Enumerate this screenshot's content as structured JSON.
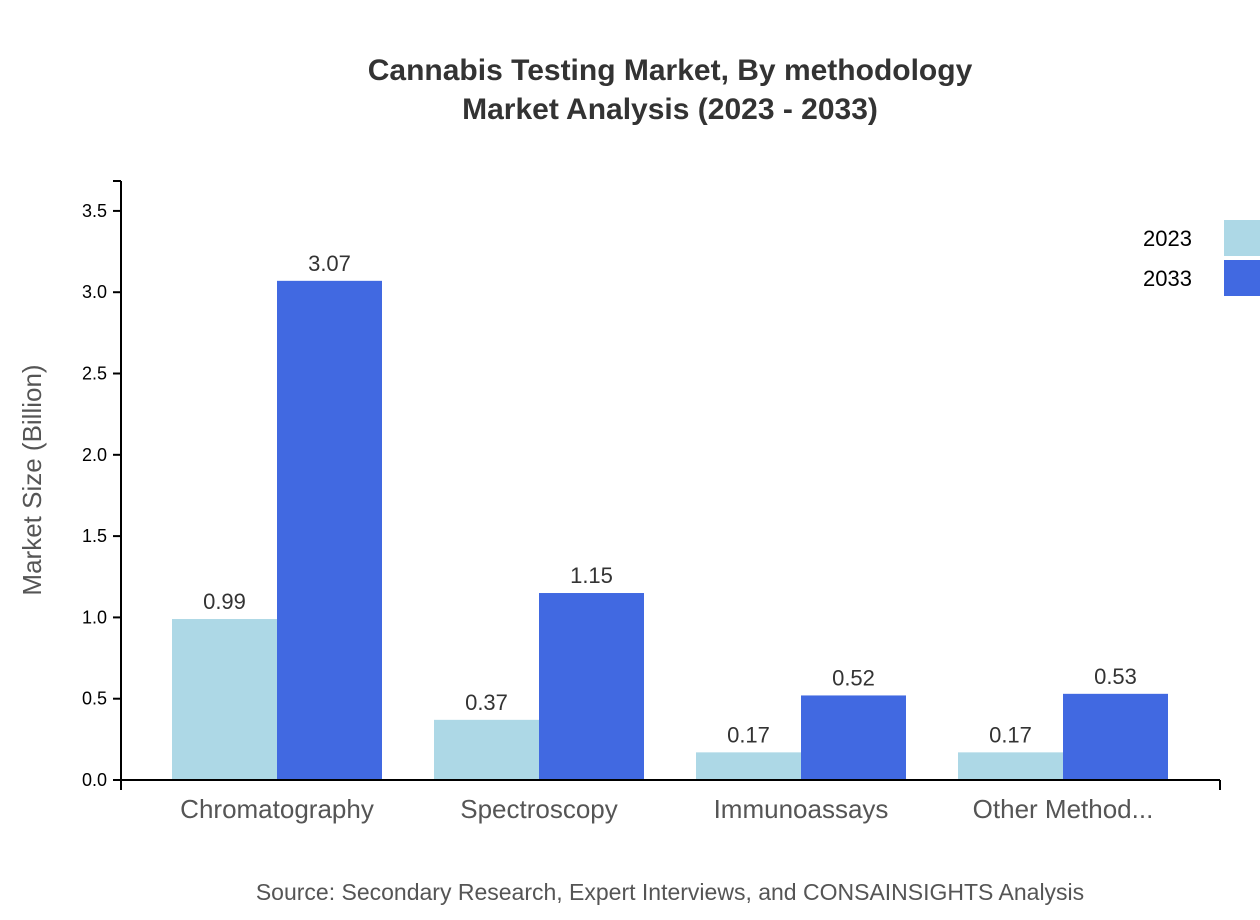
{
  "chart_data": {
    "type": "bar",
    "title": [
      "Cannabis Testing Market, By methodology",
      "Market Analysis (2023 - 2033)"
    ],
    "xlabel": "",
    "ylabel": "Market Size (Billion)",
    "ylim": [
      0,
      3.684
    ],
    "yticks": [
      "0.0",
      "0.5",
      "1.0",
      "1.5",
      "2.0",
      "2.5",
      "3.0",
      "3.5"
    ],
    "categories": [
      "Chromatography",
      "Spectroscopy",
      "Immunoassays",
      "Other Method..."
    ],
    "series": [
      {
        "name": "2023",
        "color": "#add8e6",
        "values": [
          0.99,
          0.37,
          0.17,
          0.17
        ]
      },
      {
        "name": "2033",
        "color": "#4169e1",
        "values": [
          3.07,
          1.15,
          0.52,
          0.53
        ]
      }
    ],
    "grid": false,
    "legend": "top-right",
    "source": "Source: Secondary Research, Expert Interviews, and CONSAINSIGHTS Analysis"
  }
}
